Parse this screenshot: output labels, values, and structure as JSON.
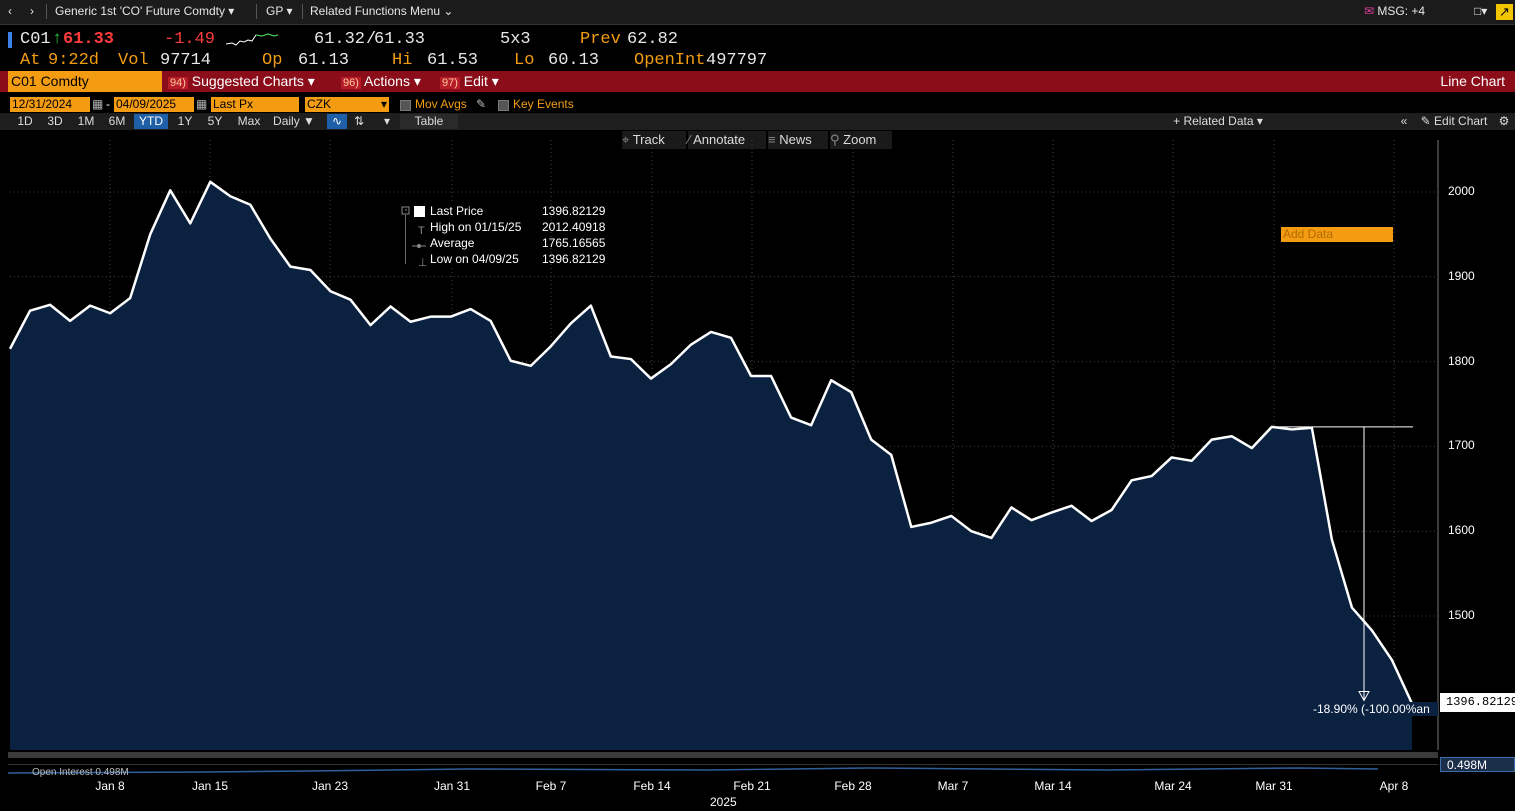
{
  "nav": {
    "security": "Generic 1st 'CO' Future Comdty",
    "function": "GP",
    "related": "Related Functions Menu",
    "msg": "MSG: +4"
  },
  "quote": {
    "ticker": "C01",
    "last": "61.33",
    "change": "-1.49",
    "bid": "61.32",
    "ask": "61.33",
    "size": "5x3",
    "prev_label": "Prev",
    "prev": "62.82",
    "at_label": "At",
    "time": "9:22d",
    "vol_label": "Vol",
    "vol": "97714",
    "op_label": "Op",
    "op": "61.13",
    "hi_label": "Hi",
    "hi": "61.53",
    "lo_label": "Lo",
    "lo": "60.13",
    "oi_label": "OpenInt",
    "oi": "497797"
  },
  "cmdbar": {
    "security": "C01 Comdty",
    "suggested_num": "94)",
    "suggested": "Suggested Charts",
    "actions_num": "96)",
    "actions": "Actions",
    "edit_num": "97)",
    "edit": "Edit",
    "chart_type": "Line Chart"
  },
  "controls": {
    "start_date": "12/31/2024",
    "end_date": "04/09/2025",
    "field": "Last Px",
    "currency": "CZK",
    "mov_avgs": "Mov Avgs",
    "key_events": "Key Events"
  },
  "range": {
    "buttons": [
      "1D",
      "3D",
      "1M",
      "6M",
      "YTD",
      "1Y",
      "5Y",
      "Max"
    ],
    "selected": "YTD",
    "period": "Daily",
    "table": "Table",
    "related_data": "Related Data",
    "add_data_placeholder": "Add Data",
    "edit_chart": "Edit Chart"
  },
  "tools": {
    "track": "Track",
    "annotate": "Annotate",
    "news": "News",
    "zoom": "Zoom"
  },
  "legend": {
    "last_label": "Last Price",
    "last_value": "1396.82129",
    "high_label": "High on 01/15/25",
    "high_value": "2012.40918",
    "avg_label": "Average",
    "avg_value": "1765.16565",
    "low_label": "Low on 04/09/25",
    "low_value": "1396.82129"
  },
  "chart_data": {
    "type": "area",
    "ylim": [
      1350,
      2060
    ],
    "yticks": [
      1500,
      1600,
      1700,
      1800,
      1900,
      2000
    ],
    "xticks": [
      "Jan 8",
      "Jan 15",
      "Jan 23",
      "Jan 31",
      "Feb 7",
      "Feb 14",
      "Feb 21",
      "Feb 28",
      "Mar 7",
      "Mar 14",
      "Mar 24",
      "Mar 31",
      "Apr 8"
    ],
    "year_label": "2025",
    "series": [
      {
        "values": [
          1815,
          1860,
          1867,
          1848,
          1866,
          1857,
          1875,
          1950,
          2002,
          1963,
          2012,
          1995,
          1985,
          1945,
          1912,
          1908,
          1883,
          1873,
          1843,
          1865,
          1847,
          1853,
          1853,
          1862,
          1848,
          1801,
          1795,
          1818,
          1845,
          1866,
          1806,
          1803,
          1780,
          1797,
          1820,
          1835,
          1828,
          1783,
          1783,
          1734,
          1725,
          1778,
          1764,
          1708,
          1690,
          1605,
          1610,
          1618,
          1600,
          1592,
          1628,
          1613,
          1622,
          1630,
          1612,
          1625,
          1660,
          1665,
          1687,
          1683,
          1708,
          1712,
          1698,
          1723,
          1720,
          1722,
          1590,
          1510,
          1483,
          1448,
          1396.82
        ]
      }
    ],
    "last_value_label": "1396.82129",
    "change_annotation": "-18.90% (-100.00%an",
    "open_interest_label": "Open Interest",
    "open_interest_value": "0.498M"
  }
}
